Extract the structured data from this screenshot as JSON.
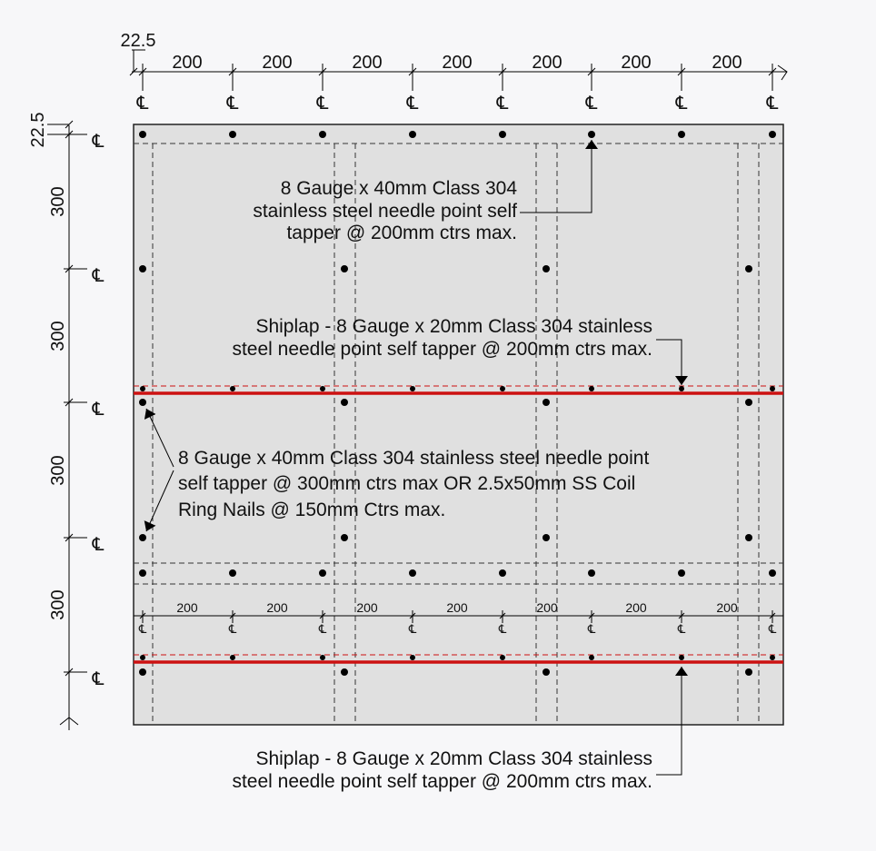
{
  "top_dims": {
    "offset_label": "22.5",
    "spacing_labels": [
      "200",
      "200",
      "200",
      "200",
      "200",
      "200",
      "200"
    ]
  },
  "left_dims": {
    "offset_label": "22.5",
    "spacing_labels": [
      "300",
      "300",
      "300",
      "300"
    ]
  },
  "centerline_symbol": "℄",
  "inner_dims": {
    "spacing_labels": [
      "200",
      "200",
      "200",
      "200",
      "200",
      "200",
      "200"
    ]
  },
  "callouts": {
    "screw_40mm_200": {
      "lines": [
        "8 Gauge x 40mm Class 304",
        "stainless steel needle point self",
        "tapper @ 200mm ctrs max."
      ]
    },
    "shiplap_upper": {
      "lines": [
        "Shiplap - 8 Gauge x 20mm Class 304 stainless",
        "steel needle point self tapper @ 200mm ctrs max."
      ]
    },
    "screw_40mm_300": {
      "lines": [
        "8 Gauge x 40mm Class 304 stainless steel needle point",
        "self tapper @ 300mm ctrs max OR 2.5x50mm SS Coil",
        "Ring Nails @ 150mm Ctrs max."
      ]
    },
    "shiplap_lower": {
      "lines": [
        "Shiplap - 8 Gauge x 20mm Class 304 stainless",
        "steel needle point self tapper @ 200mm ctrs max."
      ]
    }
  },
  "colors": {
    "panel_fill": "#e0e0e0",
    "shiplap_line": "#cc1111",
    "background": "#f7f7f9"
  }
}
